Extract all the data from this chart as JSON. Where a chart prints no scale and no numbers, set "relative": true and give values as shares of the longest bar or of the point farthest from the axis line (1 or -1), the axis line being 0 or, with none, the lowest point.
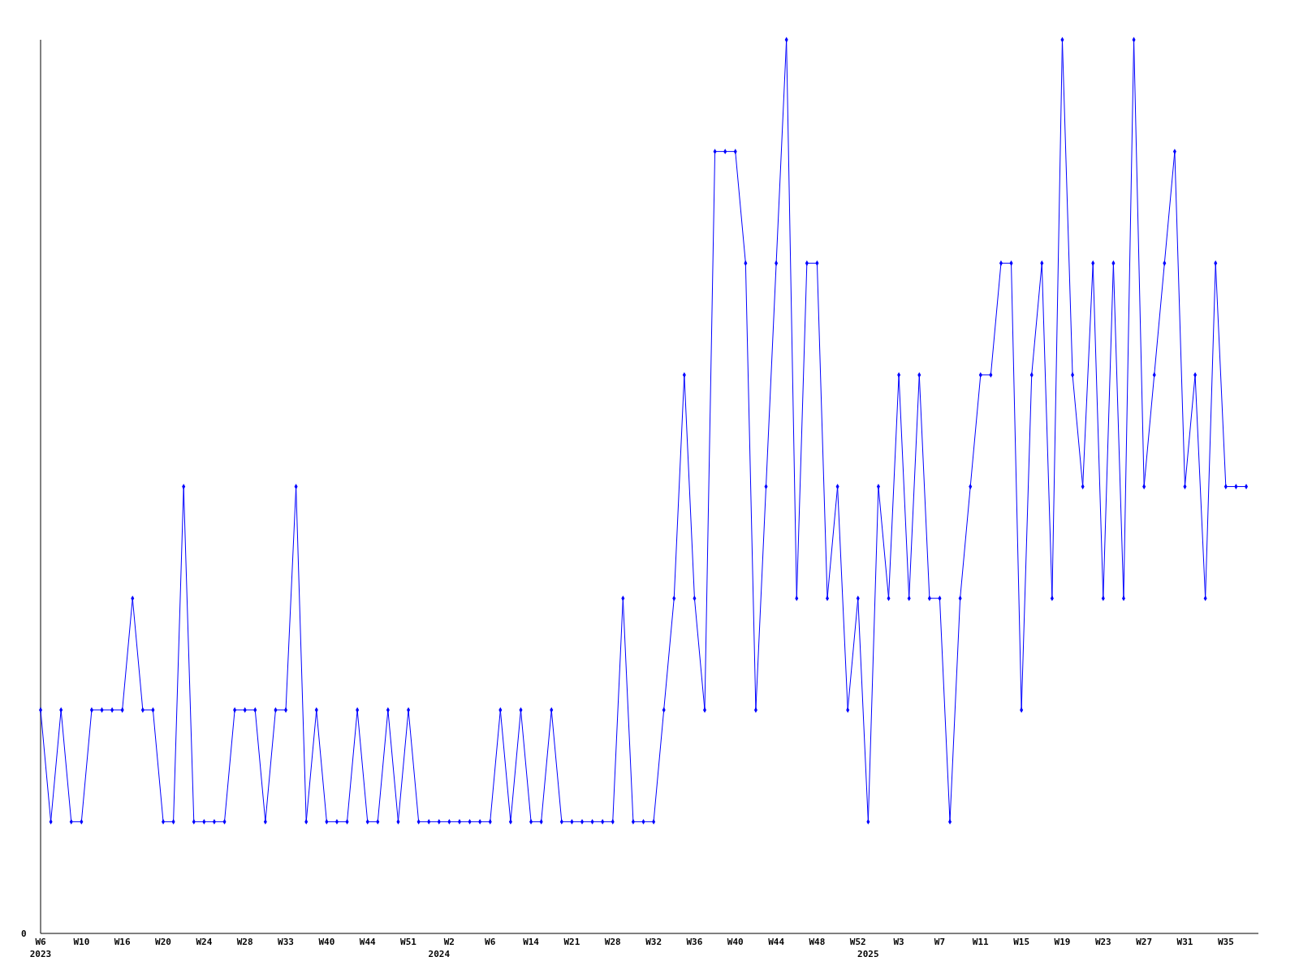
{
  "chart_data": {
    "type": "line",
    "relative": true,
    "marker": "diamond",
    "line_style": "solid",
    "annotations": [
      "0"
    ],
    "categories": [
      "W6\n2023",
      null,
      null,
      null,
      "W10",
      null,
      null,
      null,
      "W16",
      null,
      null,
      null,
      "W20",
      null,
      null,
      null,
      "W24",
      null,
      null,
      null,
      "W28",
      null,
      null,
      null,
      "W33",
      null,
      null,
      null,
      "W40",
      null,
      null,
      null,
      "W44",
      null,
      null,
      null,
      "W51",
      null,
      null,
      "\n2024",
      "W2",
      null,
      null,
      null,
      "W6",
      null,
      null,
      null,
      "W14",
      null,
      null,
      null,
      "W21",
      null,
      null,
      null,
      "W28",
      null,
      null,
      null,
      "W32",
      null,
      null,
      null,
      "W36",
      null,
      null,
      null,
      "W40",
      null,
      null,
      null,
      "W44",
      null,
      null,
      null,
      "W48",
      null,
      null,
      null,
      "W52",
      "\n2025",
      null,
      null,
      "W3",
      null,
      null,
      null,
      "W7",
      null,
      null,
      null,
      "W11",
      null,
      null,
      null,
      "W15",
      null,
      null,
      null,
      "W19",
      null,
      null,
      null,
      "W23",
      null,
      null,
      null,
      "W27",
      null,
      null,
      null,
      "W31",
      null,
      null,
      null,
      "W35",
      null,
      null
    ],
    "series": [
      {
        "color": "#0000ff",
        "values": [
          0.25,
          0.125,
          0.25,
          0.125,
          0.125,
          0.25,
          0.25,
          0.25,
          0.25,
          0.375,
          0.25,
          0.25,
          0.125,
          0.125,
          0.5,
          0.125,
          0.125,
          0.125,
          0.125,
          0.25,
          0.25,
          0.25,
          0.125,
          0.25,
          0.25,
          0.5,
          0.125,
          0.25,
          0.125,
          0.125,
          0.125,
          0.25,
          0.125,
          0.125,
          0.25,
          0.125,
          0.25,
          0.125,
          0.125,
          0.125,
          0.125,
          0.125,
          0.125,
          0.125,
          0.125,
          0.25,
          0.125,
          0.25,
          0.125,
          0.125,
          0.25,
          0.125,
          0.125,
          0.125,
          0.125,
          0.125,
          0.125,
          0.375,
          0.125,
          0.125,
          0.125,
          0.25,
          0.375,
          0.625,
          0.375,
          0.25,
          0.875,
          0.875,
          0.875,
          0.75,
          0.25,
          0.5,
          0.75,
          1,
          0.375,
          0.75,
          0.75,
          0.375,
          0.5,
          0.25,
          0.375,
          0.125,
          0.5,
          0.375,
          0.625,
          0.375,
          0.625,
          0.375,
          0.375,
          0.125,
          0.375,
          0.5,
          0.625,
          0.625,
          0.75,
          0.75,
          0.25,
          0.625,
          0.75,
          0.375,
          1,
          0.625,
          0.5,
          0.75,
          0.375,
          0.75,
          0.375,
          1,
          0.5,
          0.625,
          0.75,
          0.875,
          0.5,
          0.625,
          0.375,
          0.75,
          0.5,
          0.5,
          0.5
        ]
      }
    ]
  }
}
